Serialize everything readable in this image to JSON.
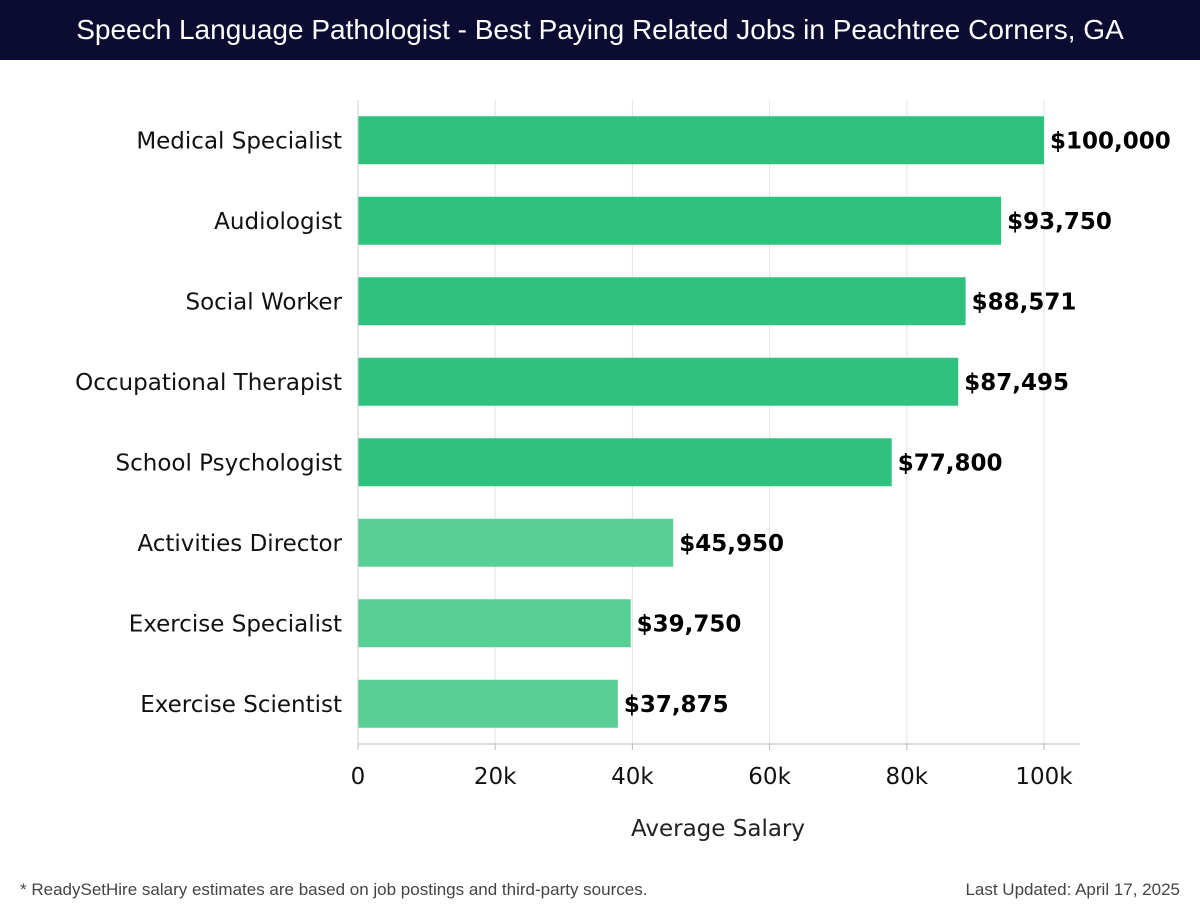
{
  "header": {
    "title": "Speech Language Pathologist - Best Paying Related Jobs in Peachtree Corners, GA"
  },
  "chart_data": {
    "type": "bar",
    "orientation": "horizontal",
    "categories": [
      "Medical Specialist",
      "Audiologist",
      "Social Worker",
      "Occupational Therapist",
      "School Psychologist",
      "Activities Director",
      "Exercise Specialist",
      "Exercise Scientist"
    ],
    "values": [
      100000,
      93750,
      88571,
      87495,
      77800,
      45950,
      39750,
      37875
    ],
    "value_labels": [
      "$100,000",
      "$93,750",
      "$88,571",
      "$87,495",
      "$77,800",
      "$45,950",
      "$39,750",
      "$37,875"
    ],
    "xlabel": "Average Salary",
    "xlim": [
      0,
      105000
    ],
    "x_ticks": [
      0,
      20000,
      40000,
      60000,
      80000,
      100000
    ],
    "x_tick_labels": [
      "0",
      "20k",
      "40k",
      "60k",
      "80k",
      "100k"
    ],
    "grid": true,
    "colors": {
      "high": "#2ec27e",
      "low": "#57cf95"
    }
  },
  "footer": {
    "note": "* ReadySetHire salary estimates are based on job postings and third-party sources.",
    "updated": "Last Updated: April 17, 2025"
  }
}
